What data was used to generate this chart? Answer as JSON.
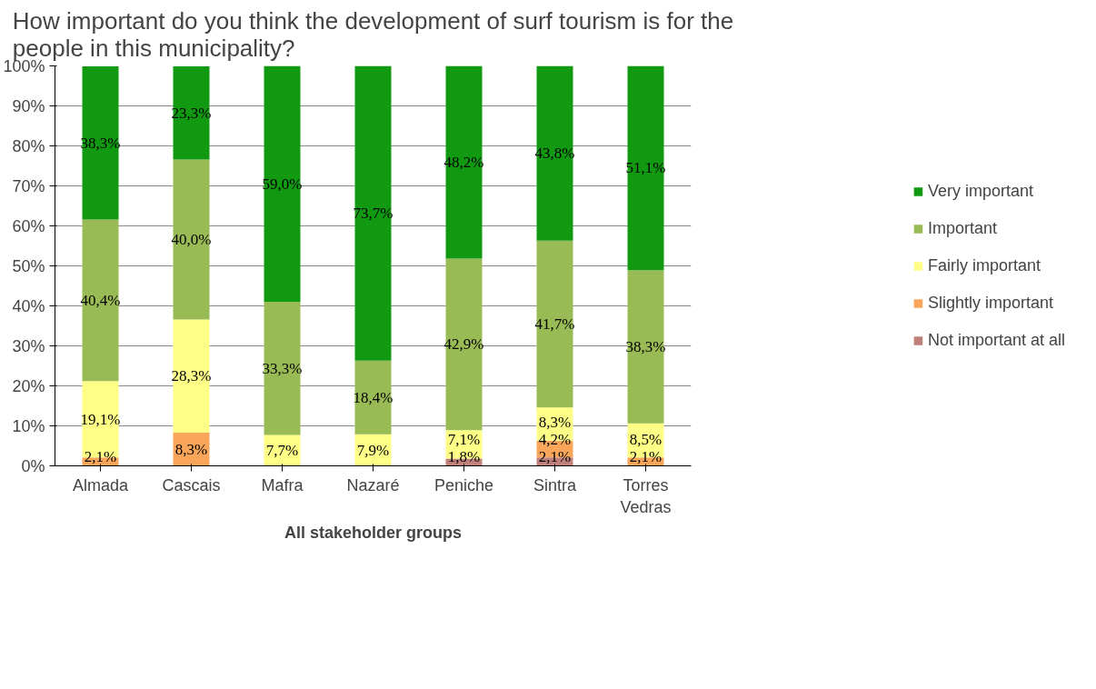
{
  "chart_data": {
    "type": "bar",
    "stacked": true,
    "title": "How important do you think the development of surf tourism is for the people in this municipality?",
    "xlabel": "All stakeholder groups",
    "categories": [
      "Almada",
      "Cascais",
      "Mafra",
      "Nazaré",
      "Peniche",
      "Sintra",
      "Torres Vedras"
    ],
    "series": [
      {
        "name": "Not important at all",
        "color": "#c0807c",
        "values": [
          null,
          null,
          null,
          null,
          1.8,
          2.1,
          null
        ],
        "value_labels": [
          null,
          null,
          null,
          null,
          "1,8%",
          "2,1%",
          null
        ]
      },
      {
        "name": "Slightly important",
        "color": "#f9a65a",
        "values": [
          2.1,
          8.3,
          null,
          null,
          null,
          4.2,
          2.1
        ],
        "value_labels": [
          "2,1%",
          "8,3%",
          null,
          null,
          null,
          "4,2%",
          "2,1%"
        ]
      },
      {
        "name": "Fairly important",
        "color": "#ffff88",
        "values": [
          19.1,
          28.3,
          7.7,
          7.9,
          7.1,
          8.3,
          8.5
        ],
        "value_labels": [
          "19,1%",
          "28,3%",
          "7,7%",
          "7,9%",
          "7,1%",
          "8,3%",
          "8,5%"
        ]
      },
      {
        "name": "Important",
        "color": "#99bb55",
        "values": [
          40.4,
          40.0,
          33.3,
          18.4,
          42.9,
          41.7,
          38.3
        ],
        "value_labels": [
          "40,4%",
          "40,0%",
          "33,3%",
          "18,4%",
          "42,9%",
          "41,7%",
          "38,3%"
        ]
      },
      {
        "name": "Very important",
        "color": "#119911",
        "values": [
          38.3,
          23.3,
          59.0,
          73.7,
          48.2,
          43.8,
          51.1
        ],
        "value_labels": [
          "38,3%",
          "23,3%",
          "59,0%",
          "73,7%",
          "48,2%",
          "43,8%",
          "51,1%"
        ]
      }
    ],
    "ylim": [
      0,
      100
    ],
    "yticks": [
      {
        "value": 0,
        "label": "0%"
      },
      {
        "value": 10,
        "label": "10%"
      },
      {
        "value": 20,
        "label": "20%"
      },
      {
        "value": 30,
        "label": "30%"
      },
      {
        "value": 40,
        "label": "40%"
      },
      {
        "value": 50,
        "label": "50%"
      },
      {
        "value": 60,
        "label": "60%"
      },
      {
        "value": 70,
        "label": "70%"
      },
      {
        "value": 80,
        "label": "80%"
      },
      {
        "value": 90,
        "label": "90%"
      },
      {
        "value": 100,
        "label": "100%"
      }
    ],
    "grid": "y",
    "legend": "right"
  }
}
